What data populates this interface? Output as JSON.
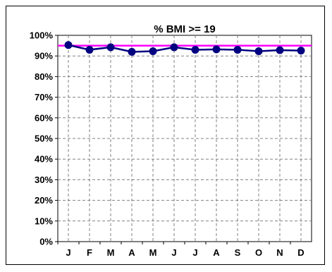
{
  "chart_data": {
    "type": "line",
    "title": "% BMI >= 19",
    "xlabel": "",
    "ylabel": "",
    "categories": [
      "J",
      "F",
      "M",
      "A",
      "M",
      "J",
      "J",
      "A",
      "S",
      "O",
      "N",
      "D"
    ],
    "series": [
      {
        "values": [
          95.3,
          93.0,
          94.2,
          92.0,
          92.3,
          94.2,
          93.0,
          93.2,
          93.0,
          92.3,
          92.8,
          92.6
        ],
        "color": "#000080"
      }
    ],
    "reference_line": {
      "value": 95,
      "color": "#ff00ff"
    },
    "ylim": [
      0,
      100
    ],
    "yticks": [
      0,
      10,
      20,
      30,
      40,
      50,
      60,
      70,
      80,
      90,
      100
    ],
    "ytick_labels": [
      "0%",
      "10%",
      "20%",
      "30%",
      "40%",
      "50%",
      "60%",
      "70%",
      "80%",
      "90%",
      "100%"
    ],
    "grid": true,
    "legend": "none"
  }
}
